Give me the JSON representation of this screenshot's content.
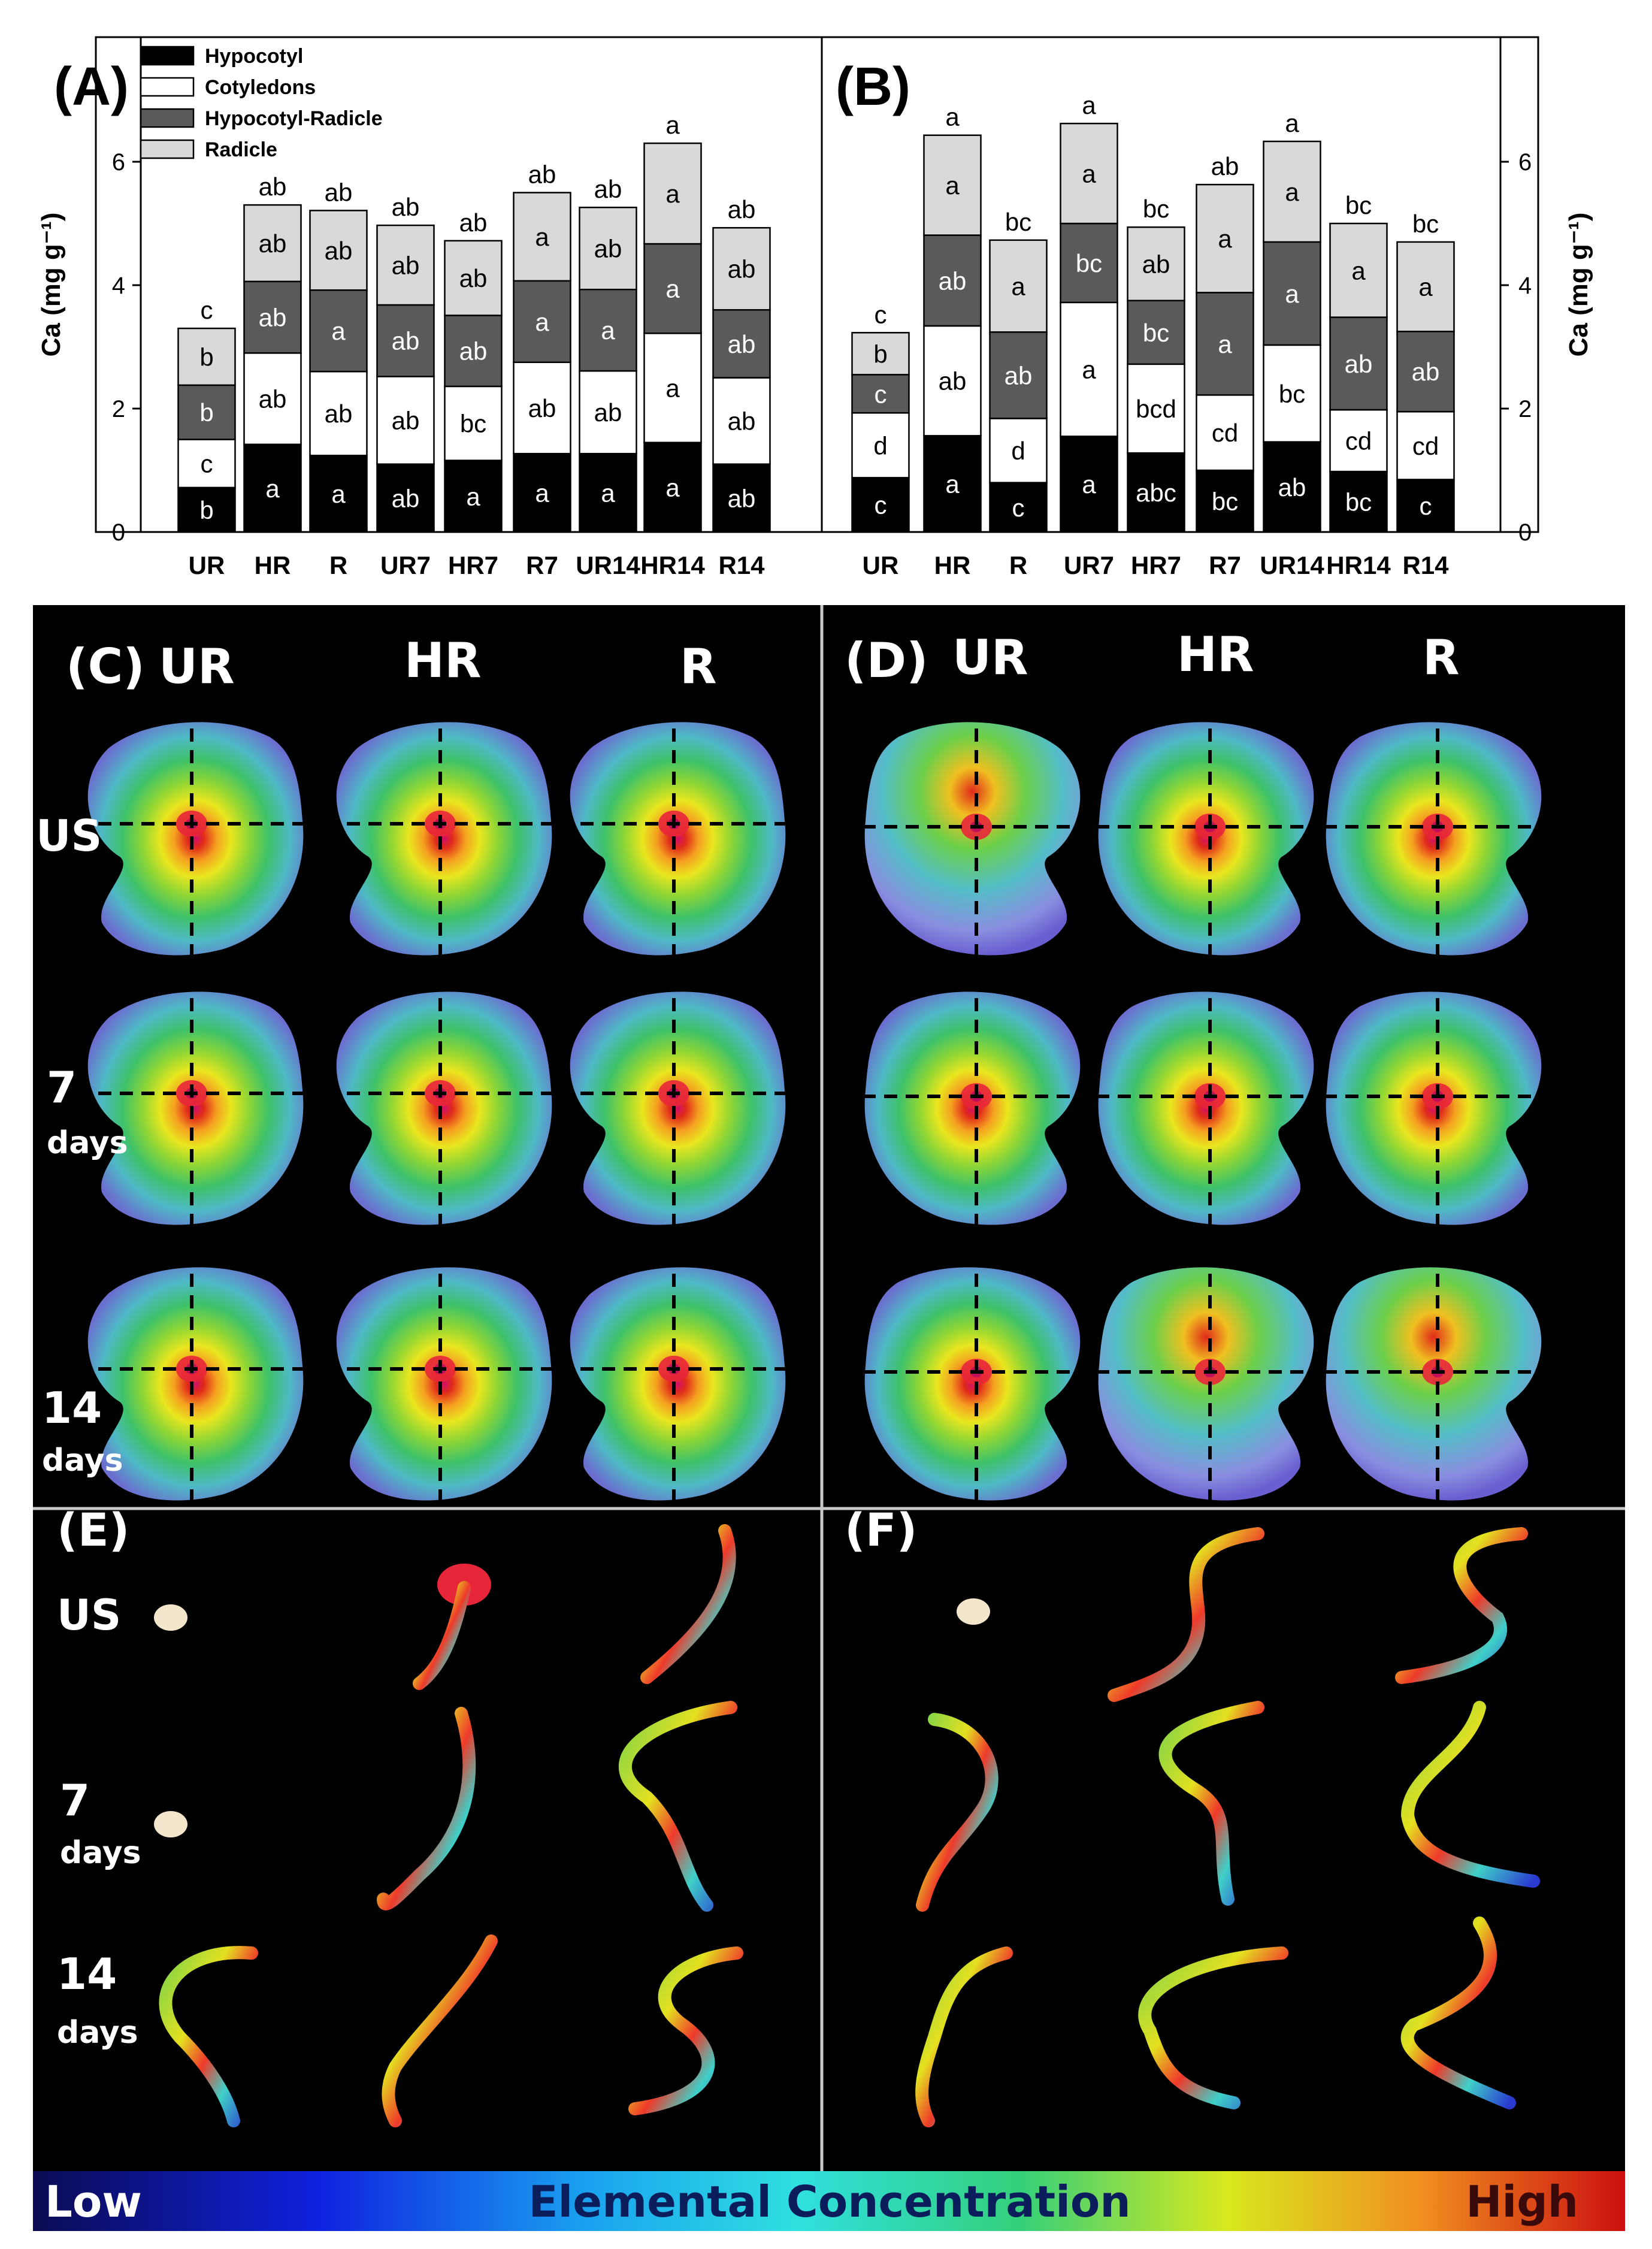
{
  "chart_data": [
    {
      "panel": "(A)",
      "type": "bar",
      "stacked": true,
      "categories": [
        "UR",
        "HR",
        "R",
        "UR7",
        "HR7",
        "R7",
        "UR14",
        "HR14",
        "R14"
      ],
      "ylabel": "Ca (mg g⁻¹)",
      "ylim": [
        0,
        7
      ],
      "yticks": [
        0,
        2,
        4,
        6
      ],
      "y_axis_side": "left",
      "legend_position": "top-left",
      "series": [
        {
          "name": "Hypocotyl",
          "color": "#000000",
          "values": [
            0.72,
            1.42,
            1.24,
            1.1,
            1.16,
            1.27,
            1.27,
            1.45,
            1.1
          ],
          "labels": [
            "b",
            "a",
            "a",
            "ab",
            "a",
            "a",
            "a",
            "a",
            "ab"
          ]
        },
        {
          "name": "Cotyledons",
          "color": "#ffffff",
          "values": [
            0.78,
            1.48,
            1.36,
            1.42,
            1.2,
            1.48,
            1.34,
            1.77,
            1.4
          ],
          "labels": [
            "c",
            "ab",
            "ab",
            "ab",
            "bc",
            "ab",
            "ab",
            "a",
            "ab"
          ]
        },
        {
          "name": "Hypocotyl-Radicle",
          "color": "#5a5a5a",
          "values": [
            0.88,
            1.16,
            1.32,
            1.16,
            1.15,
            1.32,
            1.32,
            1.45,
            1.1
          ],
          "labels": [
            "b",
            "ab",
            "a",
            "ab",
            "ab",
            "a",
            "a",
            "a",
            "ab"
          ]
        },
        {
          "name": "Radicle",
          "color": "#d9d9d9",
          "values": [
            0.92,
            1.24,
            1.29,
            1.29,
            1.21,
            1.43,
            1.33,
            1.63,
            1.33
          ],
          "labels": [
            "b",
            "ab",
            "ab",
            "ab",
            "ab",
            "a",
            "ab",
            "a",
            "ab"
          ]
        }
      ],
      "total_labels": [
        "c",
        "ab",
        "ab",
        "ab",
        "ab",
        "ab",
        "ab",
        "a",
        "ab"
      ]
    },
    {
      "panel": "(B)",
      "type": "bar",
      "stacked": true,
      "categories": [
        "UR",
        "HR",
        "R",
        "UR7",
        "HR7",
        "R7",
        "UR14",
        "HR14",
        "R14"
      ],
      "ylabel": "Ca (mg g⁻¹)",
      "ylim": [
        0,
        7
      ],
      "yticks": [
        0,
        2,
        4,
        6
      ],
      "y_axis_side": "right",
      "series": [
        {
          "name": "Hypocotyl",
          "color": "#000000",
          "values": [
            0.88,
            1.56,
            0.8,
            1.55,
            1.28,
            1.0,
            1.46,
            0.98,
            0.85
          ],
          "labels": [
            "c",
            "a",
            "c",
            "a",
            "abc",
            "bc",
            "ab",
            "bc",
            "c"
          ]
        },
        {
          "name": "Cotyledons",
          "color": "#ffffff",
          "values": [
            1.05,
            1.78,
            1.04,
            2.17,
            1.44,
            1.22,
            1.57,
            1.0,
            1.1
          ],
          "labels": [
            "d",
            "ab",
            "d",
            "a",
            "bcd",
            "cd",
            "bc",
            "cd",
            "cd"
          ]
        },
        {
          "name": "Hypocotyl-Radicle",
          "color": "#5a5a5a",
          "values": [
            0.62,
            1.47,
            1.4,
            1.28,
            1.03,
            1.66,
            1.67,
            1.5,
            1.3
          ],
          "labels": [
            "c",
            "ab",
            "ab",
            "bc",
            "bc",
            "a",
            "a",
            "ab",
            "ab"
          ]
        },
        {
          "name": "Radicle",
          "color": "#d9d9d9",
          "values": [
            0.68,
            1.62,
            1.49,
            1.62,
            1.19,
            1.75,
            1.63,
            1.52,
            1.45
          ],
          "labels": [
            "b",
            "a",
            "a",
            "a",
            "ab",
            "a",
            "a",
            "a",
            "a"
          ]
        }
      ],
      "total_labels": [
        "c",
        "a",
        "bc",
        "a",
        "bc",
        "ab",
        "a",
        "bc",
        "bc"
      ]
    }
  ],
  "image_panels": [
    {
      "label": "(C)",
      "columns": [
        "UR",
        "HR",
        "R"
      ],
      "rows": [
        "US",
        "7",
        "14"
      ],
      "row_subtexts": [
        "",
        "days",
        "days"
      ]
    },
    {
      "label": "(D)",
      "columns": [
        "UR",
        "HR",
        "R"
      ]
    },
    {
      "label": "(E)",
      "rows": [
        "US",
        "7",
        "14"
      ],
      "row_subtexts": [
        "",
        "days",
        "days"
      ]
    },
    {
      "label": "(F)"
    }
  ],
  "colorbar": {
    "low": "Low",
    "title": "Elemental Concentration",
    "high": "High",
    "low_color": "#0b0b52",
    "high_color": "#cc1010"
  }
}
